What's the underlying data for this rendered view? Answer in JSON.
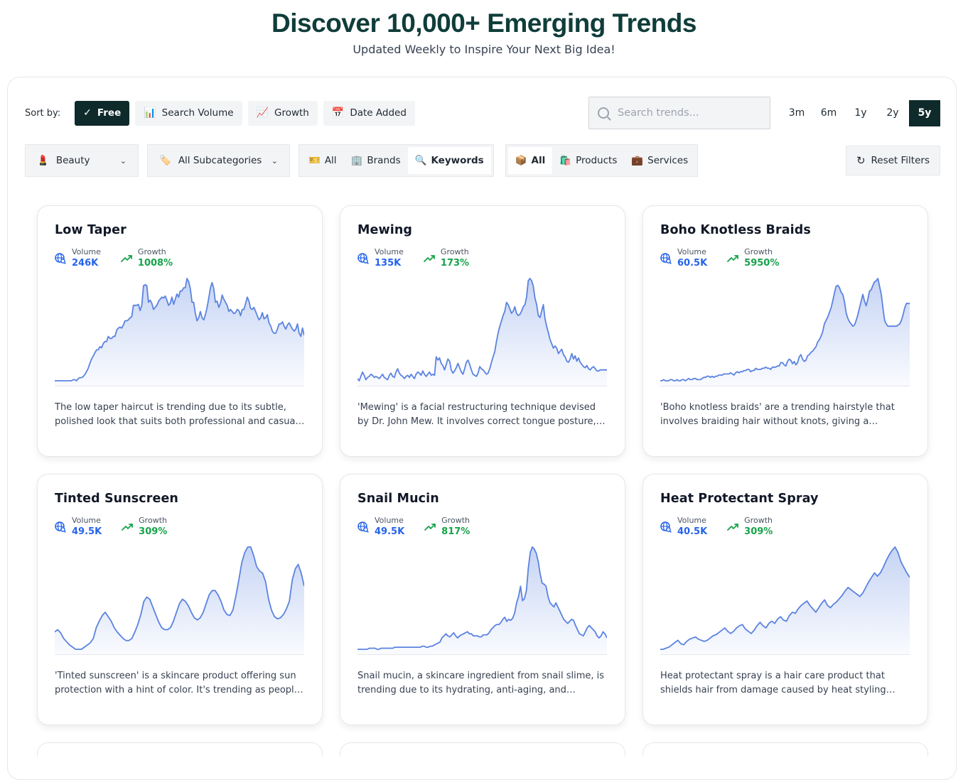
{
  "hero": {
    "title": "Discover 10,000+ Emerging Trends",
    "subtitle": "Updated Weekly to Inspire Your Next Big Idea!"
  },
  "sort": {
    "label": "Sort by:",
    "options": [
      {
        "label": "Free",
        "icon": "check-icon",
        "glyph": "✓",
        "active": true
      },
      {
        "label": "Search Volume",
        "icon": "bar-chart-icon",
        "glyph": "📊",
        "active": false
      },
      {
        "label": "Growth",
        "icon": "trending-chart-icon",
        "glyph": "📈",
        "active": false
      },
      {
        "label": "Date Added",
        "icon": "calendar-icon",
        "glyph": "📅",
        "active": false
      }
    ]
  },
  "search": {
    "placeholder": "Search trends..."
  },
  "periods": [
    {
      "label": "3m",
      "active": false
    },
    {
      "label": "6m",
      "active": false
    },
    {
      "label": "1y",
      "active": false
    },
    {
      "label": "2y",
      "active": false
    },
    {
      "label": "5y",
      "active": true
    }
  ],
  "filters": {
    "category": {
      "label": "Beauty",
      "icon": "lipstick-icon",
      "glyph": "💄"
    },
    "subcategory": {
      "label": "All Subcategories",
      "icon": "tag-icon",
      "glyph": "🏷️"
    },
    "type_group": [
      {
        "label": "All",
        "icon": "ticket-icon",
        "glyph": "🎫",
        "selected": false
      },
      {
        "label": "Brands",
        "icon": "building-icon",
        "glyph": "🏢",
        "selected": false
      },
      {
        "label": "Keywords",
        "icon": "magnifier-icon",
        "glyph": "🔍",
        "selected": true
      }
    ],
    "offer_group": [
      {
        "label": "All",
        "icon": "package-icon",
        "glyph": "📦",
        "selected": true
      },
      {
        "label": "Products",
        "icon": "shopping-bags-icon",
        "glyph": "🛍️",
        "selected": false
      },
      {
        "label": "Services",
        "icon": "briefcase-icon",
        "glyph": "💼",
        "selected": false
      }
    ],
    "reset_label": "Reset Filters"
  },
  "metric_labels": {
    "volume": "Volume",
    "growth": "Growth"
  },
  "colors": {
    "accent": "#0f2a2a",
    "line": "#5b83e0",
    "volume": "#2563eb",
    "growth": "#16a34a",
    "title": "#0f3d3a"
  },
  "cards": [
    {
      "title": "Low Taper",
      "volume": "246K",
      "growth": "1008%",
      "desc": "The low taper haircut is trending due to its subtle, polished look that suits both professional and casual settings.",
      "series": [
        5,
        5,
        5,
        5,
        5,
        5,
        5,
        5,
        5,
        5,
        5,
        6,
        6,
        5,
        7,
        8,
        8,
        9,
        11,
        14,
        17,
        22,
        26,
        29,
        32,
        35,
        35,
        38,
        37,
        41,
        43,
        43,
        48,
        46,
        46,
        48,
        48,
        54,
        56,
        57,
        56,
        59,
        63,
        63,
        64,
        66,
        67,
        78,
        78,
        78,
        79,
        73,
        78,
        97,
        98,
        97,
        81,
        83,
        80,
        74,
        76,
        78,
        82,
        84,
        86,
        85,
        87,
        83,
        78,
        80,
        86,
        79,
        84,
        89,
        86,
        92,
        92,
        95,
        95,
        104,
        101,
        94,
        81,
        81,
        70,
        63,
        66,
        72,
        66,
        64,
        69,
        76,
        85,
        95,
        100,
        94,
        81,
        82,
        76,
        80,
        88,
        84,
        81,
        78,
        72,
        74,
        72,
        70,
        71,
        74,
        73,
        68,
        74,
        74,
        80,
        86,
        82,
        75,
        74,
        76,
        72,
        68,
        64,
        66,
        71,
        65,
        66,
        69,
        61,
        58,
        53,
        51,
        51,
        55,
        60,
        60,
        62,
        58,
        55,
        59,
        61,
        58,
        55,
        53,
        55,
        60,
        51,
        48,
        56,
        49
      ]
    },
    {
      "title": "Mewing",
      "volume": "135K",
      "growth": "173%",
      "desc": "'Mewing' is a facial restructuring technique devised by Dr. John Mew. It involves correct tongue posture, swallowing, and teeth alignment.",
      "series": [
        10,
        8,
        12,
        16,
        13,
        9,
        11,
        12,
        14,
        13,
        11,
        12,
        11,
        10,
        12,
        14,
        11,
        10,
        9,
        13,
        15,
        12,
        11,
        16,
        19,
        15,
        13,
        12,
        10,
        12,
        13,
        11,
        14,
        12,
        10,
        14,
        16,
        15,
        13,
        17,
        14,
        12,
        14,
        16,
        13,
        14,
        13,
        30,
        27,
        29,
        24,
        22,
        18,
        23,
        28,
        26,
        18,
        15,
        17,
        20,
        24,
        20,
        16,
        14,
        19,
        25,
        27,
        23,
        18,
        14,
        13,
        12,
        15,
        21,
        19,
        18,
        16,
        14,
        15,
        19,
        25,
        30,
        35,
        44,
        52,
        58,
        63,
        68,
        72,
        80,
        78,
        74,
        70,
        72,
        76,
        70,
        68,
        69,
        72,
        76,
        78,
        85,
        100,
        102,
        100,
        95,
        84,
        78,
        68,
        66,
        72,
        78,
        65,
        58,
        52,
        46,
        42,
        38,
        40,
        38,
        33,
        35,
        37,
        32,
        30,
        26,
        25,
        28,
        33,
        28,
        31,
        26,
        29,
        25,
        23,
        21,
        20,
        22,
        19,
        18,
        20,
        21,
        19,
        17,
        17,
        18,
        18,
        18,
        18,
        18
      ]
    },
    {
      "title": "Boho Knotless Braids",
      "volume": "60.5K",
      "growth": "5950%",
      "desc": "'Boho knotless braids' are a trending hairstyle that involves braiding hair without knots, giving a seamless, natural look.",
      "series": [
        2,
        2,
        3,
        2,
        2,
        2,
        3,
        3,
        2,
        2,
        3,
        2,
        2,
        3,
        3,
        2,
        3,
        4,
        3,
        3,
        4,
        4,
        3,
        3,
        3,
        4,
        5,
        5,
        6,
        6,
        5,
        6,
        5,
        6,
        6,
        7,
        7,
        7,
        8,
        8,
        8,
        8,
        9,
        8,
        7,
        9,
        10,
        9,
        10,
        10,
        11,
        11,
        12,
        12,
        10,
        11,
        11,
        13,
        12,
        12,
        12,
        13,
        13,
        14,
        13,
        13,
        12,
        14,
        14,
        14,
        15,
        15,
        18,
        18,
        16,
        15,
        19,
        21,
        20,
        17,
        19,
        16,
        18,
        23,
        25,
        21,
        19,
        20,
        24,
        25,
        27,
        28,
        30,
        32,
        36,
        38,
        41,
        45,
        52,
        55,
        58,
        62,
        66,
        72,
        79,
        85,
        86,
        84,
        80,
        78,
        72,
        62,
        57,
        54,
        52,
        50,
        51,
        55,
        60,
        66,
        72,
        78,
        72,
        68,
        74,
        81,
        82,
        86,
        89,
        90,
        92,
        85,
        78,
        66,
        55,
        52,
        50,
        50,
        50,
        50,
        50,
        50,
        51,
        52,
        55,
        60,
        66,
        70,
        70,
        70
      ]
    },
    {
      "title": "Tinted Sunscreen",
      "volume": "49.5K",
      "growth": "309%",
      "desc": "'Tinted sunscreen' is a skincare product offering sun protection with a hint of color. It's trending as people seek multi-functional products.",
      "series": [
        22,
        24,
        21,
        16,
        13,
        10,
        8,
        6,
        6,
        6,
        8,
        10,
        12,
        16,
        26,
        32,
        37,
        40,
        36,
        32,
        26,
        22,
        19,
        16,
        14,
        14,
        16,
        22,
        29,
        38,
        50,
        54,
        52,
        45,
        38,
        31,
        26,
        24,
        24,
        26,
        32,
        40,
        48,
        52,
        50,
        46,
        40,
        35,
        33,
        35,
        40,
        48,
        56,
        60,
        60,
        56,
        50,
        42,
        38,
        37,
        42,
        55,
        70,
        86,
        95,
        100,
        100,
        92,
        82,
        78,
        76,
        68,
        52,
        42,
        36,
        34,
        35,
        38,
        43,
        50,
        70,
        80,
        84,
        76,
        64
      ]
    },
    {
      "title": "Snail Mucin",
      "volume": "49.5K",
      "growth": "817%",
      "desc": "Snail mucin, a skincare ingredient from snail slime, is trending due to its hydrating, anti-aging, and soothing properties.",
      "series": [
        1,
        1,
        1,
        1,
        1,
        1,
        2,
        2,
        2,
        2,
        1,
        1,
        2,
        2,
        2,
        2,
        2,
        2,
        2,
        3,
        3,
        3,
        3,
        3,
        3,
        3,
        3,
        3,
        3,
        3,
        3,
        3,
        3,
        4,
        4,
        3,
        3,
        4,
        4,
        5,
        6,
        7,
        8,
        12,
        14,
        16,
        14,
        13,
        15,
        17,
        14,
        12,
        14,
        15,
        16,
        17,
        18,
        16,
        16,
        14,
        14,
        14,
        13,
        13,
        15,
        15,
        15,
        17,
        20,
        22,
        24,
        25,
        25,
        27,
        30,
        32,
        28,
        30,
        29,
        31,
        36,
        46,
        52,
        62,
        48,
        50,
        58,
        80,
        95,
        100,
        98,
        94,
        86,
        74,
        65,
        64,
        62,
        52,
        46,
        44,
        42,
        46,
        42,
        38,
        34,
        30,
        28,
        26,
        28,
        30,
        29,
        24,
        20,
        16,
        15,
        14,
        18,
        22,
        24,
        22,
        20,
        18,
        14,
        12,
        14,
        18,
        16,
        12
      ]
    },
    {
      "title": "Heat Protectant Spray",
      "volume": "40.5K",
      "growth": "309%",
      "desc": "Heat protectant spray is a hair care product that shields hair from damage caused by heat styling tools like straighteners.",
      "series": [
        14,
        14,
        16,
        18,
        22,
        26,
        30,
        24,
        22,
        28,
        32,
        34,
        36,
        32,
        30,
        28,
        30,
        34,
        38,
        40,
        44,
        48,
        52,
        46,
        42,
        46,
        52,
        56,
        58,
        50,
        46,
        42,
        48,
        56,
        62,
        56,
        52,
        60,
        64,
        60,
        68,
        72,
        66,
        64,
        74,
        80,
        78,
        86,
        92,
        96,
        100,
        92,
        86,
        80,
        88,
        96,
        102,
        92,
        88,
        94,
        98,
        104,
        110,
        118,
        124,
        120,
        116,
        112,
        108,
        114,
        124,
        134,
        142,
        150,
        144,
        150,
        160,
        172,
        182,
        190,
        196,
        186,
        170,
        160,
        150,
        142
      ]
    }
  ]
}
